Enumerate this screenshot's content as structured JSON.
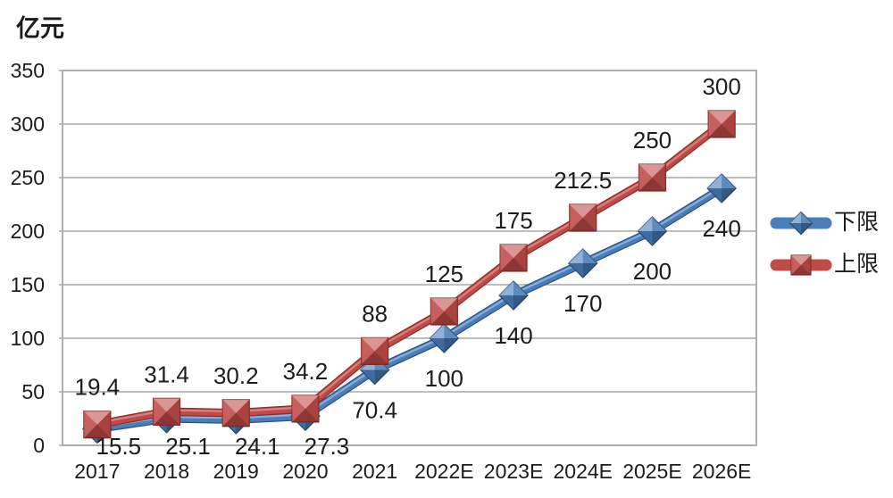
{
  "chart_data": {
    "type": "line",
    "ylabel": "亿元",
    "categories": [
      "2017",
      "2018",
      "2019",
      "2020",
      "2021",
      "2022E",
      "2023E",
      "2024E",
      "2025E",
      "2026E"
    ],
    "series": [
      {
        "name": "下限",
        "marker": "diamond",
        "color": "#4A7EBB",
        "edge": "#2E5379",
        "highlight": "#9DC0E4",
        "msize": 16,
        "label_position": "below",
        "values": [
          15.5,
          25.1,
          24.1,
          27.3,
          70.4,
          100,
          140,
          170,
          200,
          240
        ]
      },
      {
        "name": "上限",
        "marker": "square",
        "color": "#BE4B48",
        "edge": "#8C2E2B",
        "highlight": "#DB9694",
        "msize": 15,
        "label_position": "above",
        "values": [
          19.4,
          31.4,
          30.2,
          34.2,
          88,
          125,
          175,
          212.5,
          250,
          300
        ]
      }
    ],
    "ylim": [
      0,
      350
    ],
    "yticks": [
      "0",
      "50",
      "100",
      "150",
      "200",
      "250",
      "300",
      "350"
    ],
    "grid": true,
    "grid_color": "#A8A8A8",
    "text_color": "#1c1c1c",
    "legend_position": "right"
  }
}
